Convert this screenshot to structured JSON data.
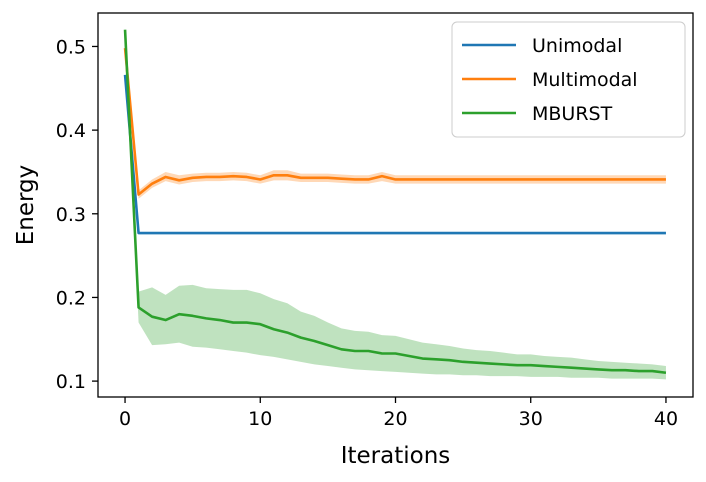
{
  "chart_data": {
    "type": "line",
    "title": "",
    "xlabel": "Iterations",
    "ylabel": "Energy",
    "xlim": [
      -2,
      42
    ],
    "ylim": [
      0.081,
      0.54
    ],
    "xticks": [
      0,
      10,
      20,
      30,
      40
    ],
    "xtick_labels": [
      "0",
      "10",
      "20",
      "30",
      "40"
    ],
    "yticks": [
      0.1,
      0.2,
      0.3,
      0.4,
      0.5
    ],
    "ytick_labels": [
      "0.1",
      "0.2",
      "0.3",
      "0.4",
      "0.5"
    ],
    "grid": false,
    "legend_position": "top-right",
    "x": [
      0,
      1,
      2,
      3,
      4,
      5,
      6,
      7,
      8,
      9,
      10,
      11,
      12,
      13,
      14,
      15,
      16,
      17,
      18,
      19,
      20,
      21,
      22,
      23,
      24,
      25,
      26,
      27,
      28,
      29,
      30,
      31,
      32,
      33,
      34,
      35,
      36,
      37,
      38,
      39,
      40
    ],
    "series": [
      {
        "name": "Unimodal",
        "color": "#1f77b4",
        "values": [
          0.466,
          0.277,
          0.277,
          0.277,
          0.277,
          0.277,
          0.277,
          0.277,
          0.277,
          0.277,
          0.277,
          0.277,
          0.277,
          0.277,
          0.277,
          0.277,
          0.277,
          0.277,
          0.277,
          0.277,
          0.277,
          0.277,
          0.277,
          0.277,
          0.277,
          0.277,
          0.277,
          0.277,
          0.277,
          0.277,
          0.277,
          0.277,
          0.277,
          0.277,
          0.277,
          0.277,
          0.277,
          0.277,
          0.277,
          0.277,
          0.277
        ],
        "lower": [
          0.466,
          0.277,
          0.277,
          0.277,
          0.277,
          0.277,
          0.277,
          0.277,
          0.277,
          0.277,
          0.277,
          0.277,
          0.277,
          0.277,
          0.277,
          0.277,
          0.277,
          0.277,
          0.277,
          0.277,
          0.277,
          0.277,
          0.277,
          0.277,
          0.277,
          0.277,
          0.277,
          0.277,
          0.277,
          0.277,
          0.277,
          0.277,
          0.277,
          0.277,
          0.277,
          0.277,
          0.277,
          0.277,
          0.277,
          0.277,
          0.277
        ],
        "upper": [
          0.466,
          0.277,
          0.277,
          0.277,
          0.277,
          0.277,
          0.277,
          0.277,
          0.277,
          0.277,
          0.277,
          0.277,
          0.277,
          0.277,
          0.277,
          0.277,
          0.277,
          0.277,
          0.277,
          0.277,
          0.277,
          0.277,
          0.277,
          0.277,
          0.277,
          0.277,
          0.277,
          0.277,
          0.277,
          0.277,
          0.277,
          0.277,
          0.277,
          0.277,
          0.277,
          0.277,
          0.277,
          0.277,
          0.277,
          0.277,
          0.277
        ]
      },
      {
        "name": "Multimodal",
        "color": "#ff7f0e",
        "values": [
          0.498,
          0.323,
          0.336,
          0.344,
          0.34,
          0.343,
          0.344,
          0.344,
          0.345,
          0.344,
          0.341,
          0.346,
          0.346,
          0.343,
          0.343,
          0.343,
          0.342,
          0.341,
          0.341,
          0.345,
          0.341,
          0.341,
          0.341,
          0.341,
          0.341,
          0.341,
          0.341,
          0.341,
          0.341,
          0.341,
          0.341,
          0.341,
          0.341,
          0.341,
          0.341,
          0.341,
          0.341,
          0.341,
          0.341,
          0.341,
          0.341
        ],
        "lower": [
          0.498,
          0.318,
          0.331,
          0.339,
          0.335,
          0.338,
          0.339,
          0.339,
          0.34,
          0.339,
          0.336,
          0.34,
          0.34,
          0.338,
          0.338,
          0.338,
          0.337,
          0.336,
          0.336,
          0.339,
          0.336,
          0.336,
          0.336,
          0.336,
          0.336,
          0.336,
          0.336,
          0.336,
          0.336,
          0.336,
          0.336,
          0.336,
          0.336,
          0.336,
          0.336,
          0.336,
          0.336,
          0.336,
          0.336,
          0.336,
          0.336
        ],
        "upper": [
          0.498,
          0.328,
          0.341,
          0.35,
          0.346,
          0.348,
          0.349,
          0.349,
          0.35,
          0.349,
          0.346,
          0.352,
          0.352,
          0.348,
          0.348,
          0.348,
          0.347,
          0.346,
          0.346,
          0.35,
          0.346,
          0.346,
          0.346,
          0.346,
          0.346,
          0.346,
          0.346,
          0.346,
          0.346,
          0.346,
          0.346,
          0.346,
          0.346,
          0.346,
          0.346,
          0.346,
          0.346,
          0.346,
          0.346,
          0.346,
          0.346
        ]
      },
      {
        "name": "MBURST",
        "color": "#2ca02c",
        "values": [
          0.52,
          0.188,
          0.177,
          0.173,
          0.18,
          0.178,
          0.175,
          0.173,
          0.17,
          0.17,
          0.168,
          0.162,
          0.158,
          0.152,
          0.148,
          0.143,
          0.138,
          0.136,
          0.136,
          0.133,
          0.133,
          0.13,
          0.127,
          0.126,
          0.125,
          0.123,
          0.122,
          0.121,
          0.12,
          0.119,
          0.119,
          0.118,
          0.117,
          0.116,
          0.115,
          0.114,
          0.113,
          0.113,
          0.112,
          0.112,
          0.11
        ],
        "lower": [
          0.52,
          0.17,
          0.143,
          0.144,
          0.146,
          0.141,
          0.14,
          0.138,
          0.136,
          0.134,
          0.131,
          0.129,
          0.126,
          0.123,
          0.12,
          0.118,
          0.116,
          0.114,
          0.113,
          0.112,
          0.111,
          0.11,
          0.109,
          0.108,
          0.108,
          0.107,
          0.107,
          0.106,
          0.106,
          0.106,
          0.105,
          0.105,
          0.105,
          0.104,
          0.104,
          0.104,
          0.103,
          0.103,
          0.103,
          0.103,
          0.102
        ],
        "upper": [
          0.52,
          0.207,
          0.212,
          0.203,
          0.214,
          0.215,
          0.211,
          0.21,
          0.209,
          0.209,
          0.205,
          0.198,
          0.193,
          0.183,
          0.178,
          0.17,
          0.163,
          0.16,
          0.159,
          0.155,
          0.154,
          0.15,
          0.146,
          0.144,
          0.142,
          0.139,
          0.137,
          0.136,
          0.134,
          0.132,
          0.132,
          0.13,
          0.129,
          0.128,
          0.126,
          0.124,
          0.123,
          0.122,
          0.121,
          0.12,
          0.118
        ]
      }
    ]
  }
}
